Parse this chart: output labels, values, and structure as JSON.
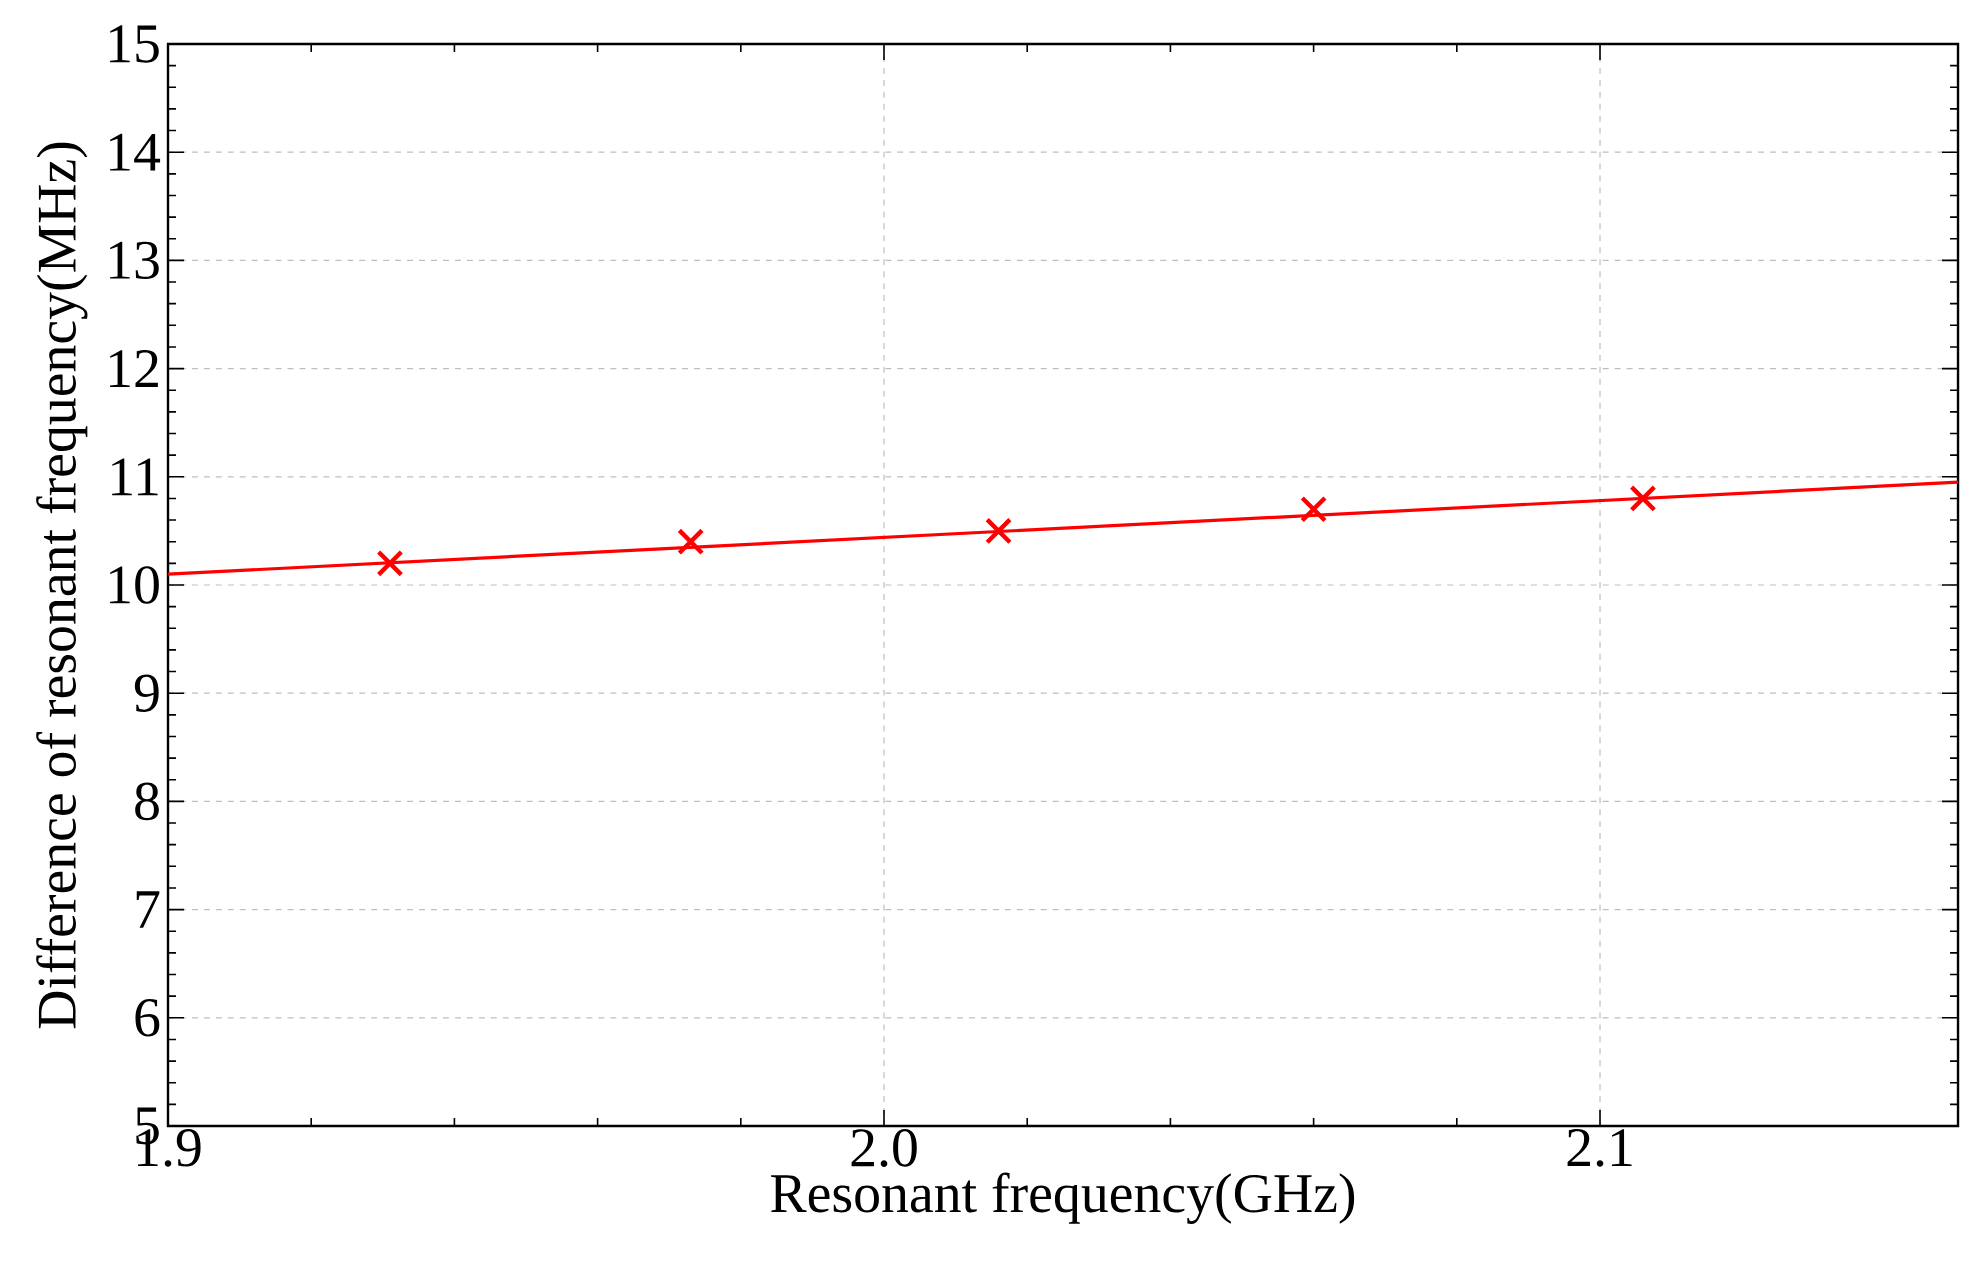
{
  "chart_data": {
    "type": "scatter",
    "xlabel": "Resonant frequency(GHz)",
    "ylabel": "Difference of resonant frequency(MHz)",
    "xlim": [
      1.9,
      2.15
    ],
    "ylim": [
      5,
      15
    ],
    "xticks": [
      {
        "value": 1.9,
        "label": "1.9"
      },
      {
        "value": 2.0,
        "label": "2.0"
      },
      {
        "value": 2.1,
        "label": "2.1"
      }
    ],
    "yticks": [
      5,
      6,
      7,
      8,
      9,
      10,
      11,
      12,
      13,
      14,
      15
    ],
    "grid": true,
    "series": [
      {
        "color": "#ff0000",
        "marker": "cross",
        "x": [
          1.931,
          1.973,
          2.016,
          2.06,
          2.106
        ],
        "values": [
          10.2,
          10.4,
          10.5,
          10.7,
          10.8
        ]
      },
      {
        "type": "line",
        "color": "#ff0000",
        "marker": "none",
        "line_style": "solid",
        "x": [
          1.9,
          2.15
        ],
        "values": [
          10.1,
          10.95
        ]
      }
    ]
  }
}
